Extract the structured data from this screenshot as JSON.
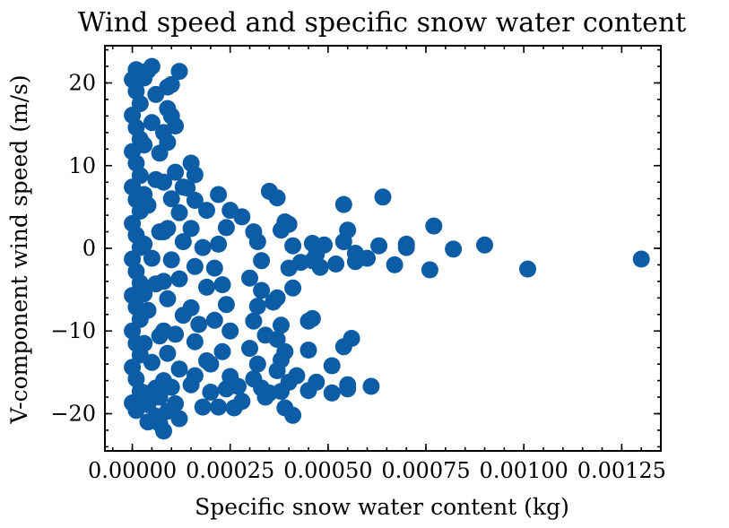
{
  "chart_data": {
    "type": "scatter",
    "title": "Wind speed and specific snow water content",
    "xlabel": "Specific snow water content (kg)",
    "ylabel": "V-component wind speed (m/s)",
    "xlim": [
      -7e-05,
      0.00135
    ],
    "ylim": [
      -24.5,
      24.5
    ],
    "xticks": [
      0.0,
      0.00025,
      0.0005,
      0.00075,
      0.001,
      0.00125
    ],
    "xtick_labels": [
      "0.00000",
      "0.00025",
      "0.00050",
      "0.00075",
      "0.00100",
      "0.00125"
    ],
    "yticks": [
      -20,
      -10,
      0,
      10,
      20
    ],
    "ytick_labels": [
      "−20",
      "−10",
      "0",
      "10",
      "20"
    ],
    "grid": false,
    "legend": "none",
    "marker_color": "#0C5DA5",
    "series": [
      {
        "points": [
          [
            0.0013,
            -1.3
          ],
          [
            0.00101,
            -2.5
          ],
          [
            0.0009,
            0.4
          ],
          [
            0.00082,
            -0.1
          ],
          [
            0.00077,
            2.7
          ],
          [
            0.00076,
            -2.6
          ],
          [
            0.0007,
            0.1
          ],
          [
            0.0007,
            0.5
          ],
          [
            0.00067,
            -2.0
          ],
          [
            0.00064,
            6.2
          ],
          [
            0.00063,
            0.3
          ],
          [
            0.0006,
            -1.2
          ],
          [
            0.00057,
            -0.6
          ],
          [
            0.00057,
            -1.6
          ],
          [
            0.00055,
            2.2
          ],
          [
            0.00054,
            5.3
          ],
          [
            0.00054,
            0.8
          ],
          [
            0.00052,
            -1.9
          ],
          [
            0.00056,
            -10.9
          ],
          [
            0.00054,
            -11.9
          ],
          [
            0.00055,
            -16.5
          ],
          [
            0.00055,
            -17.0
          ],
          [
            0.00061,
            -16.7
          ],
          [
            0.00051,
            -14.2
          ],
          [
            0.00051,
            -17.5
          ],
          [
            0.00049,
            0.4
          ],
          [
            0.00046,
            0.6
          ],
          [
            0.00047,
            -0.7
          ],
          [
            0.00046,
            -1.5
          ],
          [
            0.00048,
            -2.3
          ],
          [
            0.00046,
            -8.5
          ],
          [
            0.00045,
            -8.8
          ],
          [
            0.00045,
            -12.3
          ],
          [
            0.00047,
            -16.2
          ],
          [
            0.00045,
            -17.2
          ],
          [
            0.00042,
            -15.4
          ],
          [
            0.0004,
            2.9
          ],
          [
            0.00038,
            2.2
          ],
          [
            0.00039,
            3.2
          ],
          [
            0.00035,
            6.9
          ],
          [
            0.00037,
            6.1
          ],
          [
            0.00041,
            0.3
          ],
          [
            0.00043,
            -1.7
          ],
          [
            0.0004,
            -2.4
          ],
          [
            0.00041,
            -4.8
          ],
          [
            0.00037,
            -6.0
          ],
          [
            0.00036,
            -6.5
          ],
          [
            0.00038,
            -9.3
          ],
          [
            0.00037,
            -11.0
          ],
          [
            0.00039,
            -12.5
          ],
          [
            0.00038,
            -13.5
          ],
          [
            0.00037,
            -14.8
          ],
          [
            0.0004,
            -16.2
          ],
          [
            0.00038,
            -17.3
          ],
          [
            0.00035,
            -17.5
          ],
          [
            0.00034,
            -18.0
          ],
          [
            0.00041,
            -20.2
          ],
          [
            0.00039,
            -19.3
          ],
          [
            0.00031,
            2.0
          ],
          [
            0.00028,
            3.8
          ],
          [
            0.00032,
            0.8
          ],
          [
            0.00033,
            -1.5
          ],
          [
            0.0003,
            -3.6
          ],
          [
            0.00033,
            -5.1
          ],
          [
            0.00032,
            -7.0
          ],
          [
            0.00031,
            -8.8
          ],
          [
            0.00034,
            -10.5
          ],
          [
            0.0003,
            -12.1
          ],
          [
            0.00032,
            -14.0
          ],
          [
            0.00031,
            -15.8
          ],
          [
            0.00033,
            -16.9
          ],
          [
            0.00028,
            -18.5
          ],
          [
            0.00026,
            -19.3
          ],
          [
            0.00027,
            -16.7
          ],
          [
            0.00025,
            -15.5
          ],
          [
            0.00022,
            6.5
          ],
          [
            0.00025,
            4.6
          ],
          [
            0.00024,
            2.5
          ],
          [
            0.00022,
            0.5
          ],
          [
            0.00021,
            -2.4
          ],
          [
            0.00023,
            -4.4
          ],
          [
            0.00024,
            -6.8
          ],
          [
            0.00021,
            -8.7
          ],
          [
            0.00025,
            -10.0
          ],
          [
            0.00023,
            -12.5
          ],
          [
            0.0002,
            -14.0
          ],
          [
            0.00024,
            -17.0
          ],
          [
            0.00022,
            -19.2
          ],
          [
            0.00018,
            -19.2
          ],
          [
            0.00015,
            10.3
          ],
          [
            0.00016,
            8.9
          ],
          [
            0.00014,
            7.3
          ],
          [
            0.00016,
            5.8
          ],
          [
            0.00019,
            4.6
          ],
          [
            0.00015,
            2.4
          ],
          [
            0.00018,
            0.1
          ],
          [
            0.00016,
            -2.2
          ],
          [
            0.00019,
            -4.7
          ],
          [
            0.00015,
            -7.2
          ],
          [
            0.00017,
            -9.2
          ],
          [
            0.00016,
            -11.3
          ],
          [
            0.00019,
            -13.6
          ],
          [
            0.00016,
            -15.4
          ],
          [
            0.0002,
            -17.4
          ],
          [
            0.00015,
            -16.5
          ],
          [
            0.00012,
            21.4
          ],
          [
            0.0001,
            19.8
          ],
          [
            9e-05,
            19.5
          ],
          [
            9e-05,
            16.9
          ],
          [
            0.0001,
            16.0
          ],
          [
            0.00011,
            14.8
          ],
          [
            9e-05,
            12.8
          ],
          [
            0.00011,
            9.2
          ],
          [
            0.00013,
            7.4
          ],
          [
            0.0001,
            6.0
          ],
          [
            0.00012,
            4.3
          ],
          [
            9e-05,
            2.4
          ],
          [
            0.00013,
            0.8
          ],
          [
            0.0001,
            -1.4
          ],
          [
            0.00012,
            -3.7
          ],
          [
            9e-05,
            -6.1
          ],
          [
            0.00013,
            -8.1
          ],
          [
            0.00011,
            -10.4
          ],
          [
            9e-05,
            -12.7
          ],
          [
            0.00012,
            -14.6
          ],
          [
            0.0001,
            -16.8
          ],
          [
            0.00011,
            -18.8
          ],
          [
            0.00012,
            -20.6
          ],
          [
            9e-05,
            -19.7
          ],
          [
            6e-05,
            -20.3
          ],
          [
            4e-05,
            -21.0
          ],
          [
            5e-05,
            22.0
          ],
          [
            4e-05,
            21.5
          ],
          [
            3e-05,
            20.6
          ],
          [
            6e-05,
            18.6
          ],
          [
            5e-05,
            15.2
          ],
          [
            7e-05,
            11.5
          ],
          [
            6e-05,
            8.3
          ],
          [
            4e-05,
            5.2
          ],
          [
            7e-05,
            2.0
          ],
          [
            5e-05,
            -1.2
          ],
          [
            6e-05,
            -4.3
          ],
          [
            4e-05,
            -7.5
          ],
          [
            7e-05,
            -10.6
          ],
          [
            5e-05,
            -13.8
          ],
          [
            6e-05,
            -16.9
          ],
          [
            4e-05,
            -18.9
          ],
          [
            7e-05,
            -21.2
          ],
          [
            8e-05,
            -22.1
          ],
          [
            1e-05,
            21.6
          ],
          [
            2e-05,
            21.0
          ],
          [
            0.0,
            20.4
          ],
          [
            1e-05,
            19.0
          ],
          [
            2e-05,
            17.5
          ],
          [
            0.0,
            16.1
          ],
          [
            1e-05,
            14.6
          ],
          [
            2e-05,
            13.2
          ],
          [
            0.0,
            11.7
          ],
          [
            1e-05,
            10.3
          ],
          [
            2e-05,
            8.8
          ],
          [
            0.0,
            7.4
          ],
          [
            1e-05,
            5.9
          ],
          [
            2e-05,
            4.5
          ],
          [
            0.0,
            3.0
          ],
          [
            1e-05,
            1.6
          ],
          [
            2e-05,
            0.1
          ],
          [
            0.0,
            -1.3
          ],
          [
            1e-05,
            -2.8
          ],
          [
            2e-05,
            -4.2
          ],
          [
            0.0,
            -5.7
          ],
          [
            1e-05,
            -7.1
          ],
          [
            2e-05,
            -8.6
          ],
          [
            0.0,
            -10.0
          ],
          [
            1e-05,
            -11.5
          ],
          [
            2e-05,
            -12.9
          ],
          [
            0.0,
            -14.4
          ],
          [
            1e-05,
            -15.8
          ],
          [
            2e-05,
            -17.3
          ],
          [
            0.0,
            -18.7
          ],
          [
            1e-05,
            -19.6
          ],
          [
            3e-05,
            12.5
          ],
          [
            3e-05,
            6.5
          ],
          [
            3e-05,
            0.5
          ],
          [
            3e-05,
            -5.5
          ],
          [
            3e-05,
            -11.5
          ],
          [
            3e-05,
            -17.5
          ],
          [
            7e-05,
            -18.0
          ],
          [
            8e-05,
            14.0
          ],
          [
            8e-05,
            8.0
          ],
          [
            8e-05,
            2.0
          ],
          [
            8e-05,
            -4.0
          ],
          [
            8e-05,
            -10.0
          ],
          [
            8e-05,
            -16.0
          ]
        ]
      }
    ]
  }
}
